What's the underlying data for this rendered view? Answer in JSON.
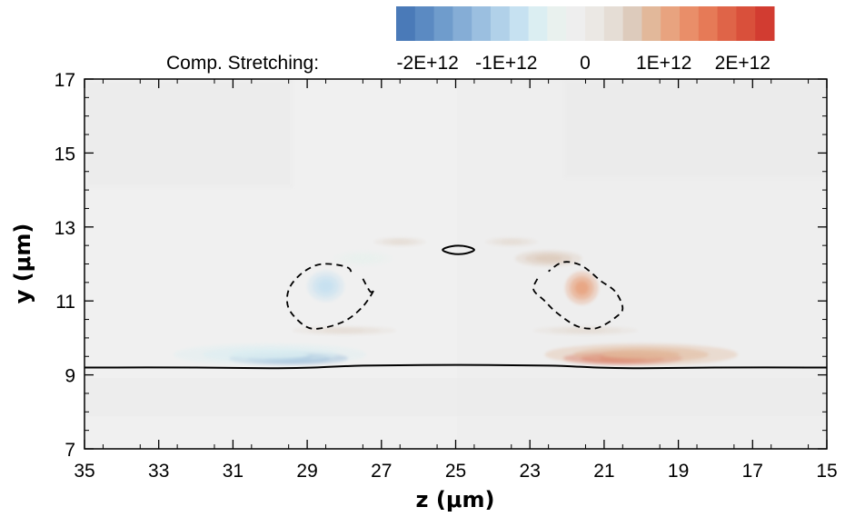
{
  "chart_data": {
    "type": "heatmap",
    "title": "",
    "xlabel": "z (μm)",
    "ylabel": "y (μm)",
    "xlim": [
      35,
      15
    ],
    "x_reversed": true,
    "ylim": [
      7,
      17
    ],
    "x_ticks": [
      {
        "value": 35,
        "label": "35"
      },
      {
        "value": 33,
        "label": "33"
      },
      {
        "value": 31,
        "label": "31"
      },
      {
        "value": 29,
        "label": "29"
      },
      {
        "value": 27,
        "label": "27"
      },
      {
        "value": 25,
        "label": "25"
      },
      {
        "value": 23,
        "label": "23"
      },
      {
        "value": 21,
        "label": "21"
      },
      {
        "value": 19,
        "label": "19"
      },
      {
        "value": 17,
        "label": "17"
      },
      {
        "value": 15,
        "label": "15"
      }
    ],
    "y_ticks": [
      {
        "value": 7,
        "label": "7"
      },
      {
        "value": 9,
        "label": "9"
      },
      {
        "value": 11,
        "label": "11"
      },
      {
        "value": 13,
        "label": "13"
      },
      {
        "value": 15,
        "label": "15"
      },
      {
        "value": 17,
        "label": "17"
      }
    ],
    "grid": false,
    "colorbar": {
      "title": "Comp. Stretching:",
      "placement": "top",
      "range": [
        -2400000000000.0,
        2400000000000.0
      ],
      "ticks": [
        {
          "value": -2000000000000.0,
          "label": "-2E+12"
        },
        {
          "value": -1000000000000.0,
          "label": "-1E+12"
        },
        {
          "value": 0,
          "label": "0"
        },
        {
          "value": 1000000000000.0,
          "label": "1E+12"
        },
        {
          "value": 2000000000000.0,
          "label": "2E+12"
        }
      ],
      "colors": [
        "#4a7ab8",
        "#5b8ac2",
        "#6f9ccc",
        "#85add6",
        "#9bbfe0",
        "#b1d1e9",
        "#c6e1f1",
        "#dbeef2",
        "#e9f1ee",
        "#eeeeee",
        "#ebe8e4",
        "#e5ddd5",
        "#ddcbbc",
        "#e2b89a",
        "#e8a37f",
        "#e98e69",
        "#e67a57",
        "#df6448",
        "#d9503b",
        "#d23c31"
      ]
    },
    "background_value": 0,
    "features": [
      {
        "kind": "blob",
        "z": 29.5,
        "y": 9.45,
        "sz": 1.6,
        "sy": 0.17,
        "value": -2100000000000.0
      },
      {
        "kind": "blob",
        "z": 30.0,
        "y": 9.55,
        "sz": 2.6,
        "sy": 0.3,
        "value": -700000000000.0
      },
      {
        "kind": "blob",
        "z": 20.5,
        "y": 9.45,
        "sz": 1.6,
        "sy": 0.17,
        "value": 2200000000000.0
      },
      {
        "kind": "blob",
        "z": 20.0,
        "y": 9.55,
        "sz": 2.6,
        "sy": 0.3,
        "value": 800000000000.0
      },
      {
        "kind": "blob",
        "z": 28.5,
        "y": 11.4,
        "sz": 0.5,
        "sy": 0.42,
        "value": -800000000000.0
      },
      {
        "kind": "blob",
        "z": 27.5,
        "y": 12.15,
        "sz": 0.8,
        "sy": 0.22,
        "value": -350000000000.0
      },
      {
        "kind": "blob",
        "z": 21.6,
        "y": 11.35,
        "sz": 0.45,
        "sy": 0.45,
        "value": 1000000000000.0
      },
      {
        "kind": "blob",
        "z": 22.5,
        "y": 12.15,
        "sz": 0.9,
        "sy": 0.22,
        "value": 500000000000.0
      },
      {
        "kind": "blob",
        "z": 26.5,
        "y": 12.6,
        "sz": 0.7,
        "sy": 0.12,
        "value": 350000000000.0
      },
      {
        "kind": "blob",
        "z": 23.5,
        "y": 12.6,
        "sz": 0.7,
        "sy": 0.12,
        "value": 300000000000.0
      },
      {
        "kind": "blob",
        "z": 28.0,
        "y": 10.2,
        "sz": 1.4,
        "sy": 0.12,
        "value": 250000000000.0
      },
      {
        "kind": "blob",
        "z": 21.5,
        "y": 10.2,
        "sz": 1.4,
        "sy": 0.12,
        "value": 250000000000.0
      }
    ],
    "contours": [
      {
        "name": "solid-interface",
        "style": "solid",
        "points": [
          [
            35,
            9.2
          ],
          [
            32,
            9.2
          ],
          [
            30,
            9.18
          ],
          [
            28.8,
            9.2
          ],
          [
            27.5,
            9.25
          ],
          [
            25,
            9.27
          ],
          [
            22.5,
            9.25
          ],
          [
            21.2,
            9.2
          ],
          [
            20,
            9.18
          ],
          [
            18,
            9.2
          ],
          [
            15,
            9.2
          ]
        ]
      },
      {
        "name": "solid-loop",
        "style": "solid",
        "closed": true,
        "points": [
          [
            25.35,
            12.38
          ],
          [
            25.1,
            12.48
          ],
          [
            24.75,
            12.48
          ],
          [
            24.5,
            12.38
          ],
          [
            24.75,
            12.28
          ],
          [
            25.1,
            12.28
          ]
        ]
      },
      {
        "name": "dashed-left",
        "style": "dashed",
        "points": [
          [
            27.5,
            11.6
          ],
          [
            27.3,
            11.25
          ],
          [
            27.2,
            11.3
          ],
          [
            27.5,
            10.85
          ],
          [
            28.0,
            10.45
          ],
          [
            28.7,
            10.25
          ],
          [
            29.1,
            10.35
          ],
          [
            29.5,
            10.8
          ],
          [
            29.5,
            11.3
          ],
          [
            29.2,
            11.7
          ],
          [
            28.8,
            11.95
          ],
          [
            28.4,
            12.0
          ],
          [
            27.9,
            11.9
          ],
          [
            27.8,
            11.7
          ]
        ]
      },
      {
        "name": "dashed-right",
        "style": "dashed",
        "points": [
          [
            22.8,
            11.6
          ],
          [
            22.9,
            11.3
          ],
          [
            22.6,
            11.0
          ],
          [
            22.3,
            10.7
          ],
          [
            21.8,
            10.35
          ],
          [
            21.4,
            10.25
          ],
          [
            21.1,
            10.3
          ],
          [
            20.7,
            10.55
          ],
          [
            20.5,
            10.8
          ],
          [
            20.7,
            11.25
          ],
          [
            21.1,
            11.55
          ],
          [
            21.6,
            11.95
          ],
          [
            22.1,
            12.05
          ],
          [
            22.5,
            11.8
          ]
        ]
      }
    ]
  }
}
